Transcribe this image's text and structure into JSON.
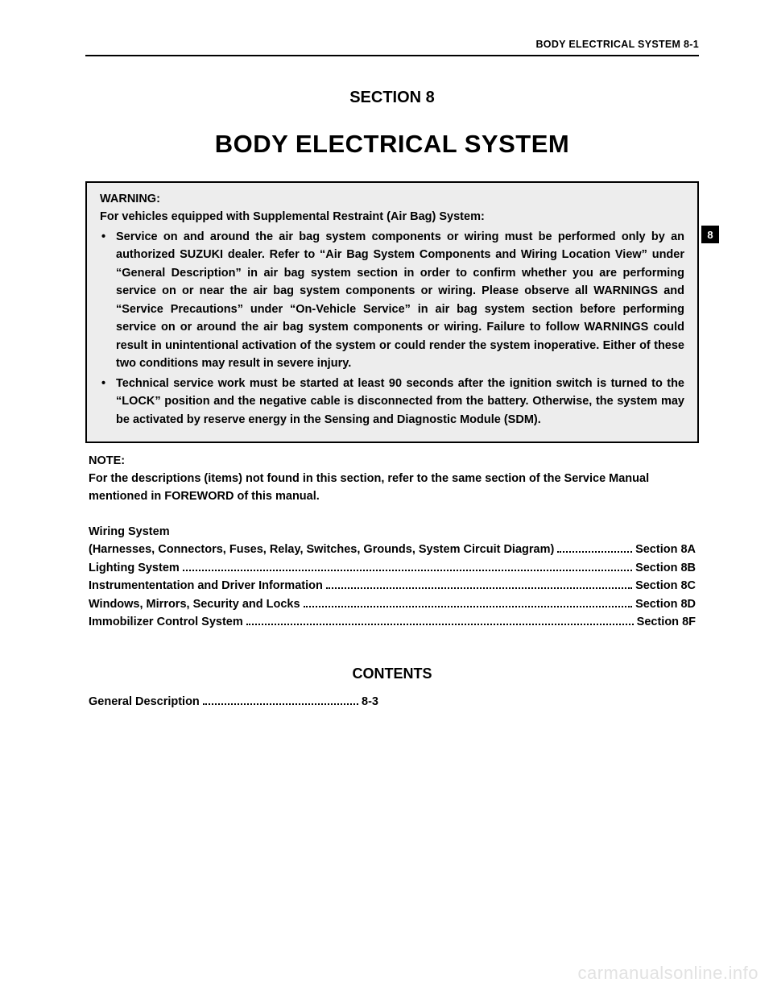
{
  "colors": {
    "text": "#000000",
    "background": "#ffffff",
    "warning_bg": "#ededed",
    "tab_bg": "#000000",
    "tab_fg": "#ffffff",
    "watermark": "#e2e2e2",
    "rule": "#000000"
  },
  "typography": {
    "family": "Arial",
    "running_head_pt": 12.5,
    "section_label_pt": 20,
    "main_title_pt": 31,
    "body_bold_pt": 14.5,
    "contents_title_pt": 18,
    "watermark_pt": 22
  },
  "running_head": "BODY ELECTRICAL SYSTEM 8-1",
  "section_label": "SECTION 8",
  "main_title": "BODY ELECTRICAL SYSTEM",
  "side_tab": "8",
  "warning": {
    "title": "WARNING:",
    "subtitle": "For vehicles equipped with Supplemental Restraint (Air Bag) System:",
    "bullets": [
      "Service on and around the air bag system components or wiring must be performed only by an authorized SUZUKI dealer. Refer to “Air Bag System Components and Wiring Location View” under “General Description” in air bag system section in order to confirm whether you are performing service on or near the air bag system components or wiring. Please observe all WARNINGS and “Service Precautions” under “On-Vehicle Service” in air bag system section before performing service on or around the air bag system components or wiring. Failure to follow WARNINGS could result in unintentional activation of the system or could render the system inoperative. Either of these two conditions may result in severe injury.",
      "Technical service work must be started at least 90 seconds after the ignition switch is turned to the “LOCK” position and the negative cable is disconnected from the battery. Otherwise, the system may be activated by reserve energy in the Sensing and Diagnostic Module (SDM)."
    ]
  },
  "note": {
    "title": "NOTE:",
    "text": "For the descriptions (items) not found in this section, refer to the same section of the Service Manual mentioned in FOREWORD of this manual."
  },
  "section_toc": {
    "heading": "Wiring System",
    "rows": [
      {
        "label": "(Harnesses, Connectors, Fuses, Relay, Switches, Grounds, System Circuit Diagram)",
        "target": "Section 8A"
      },
      {
        "label": "Lighting System",
        "target": "Section 8B"
      },
      {
        "label": "Instrumententation and Driver Information",
        "target": "Section 8C"
      },
      {
        "label": "Windows, Mirrors, Security and Locks",
        "target": "Section 8D"
      },
      {
        "label": "Immobilizer Control System",
        "target": "Section 8F"
      }
    ]
  },
  "contents": {
    "title": "CONTENTS",
    "rows": [
      {
        "label": "General Description",
        "target": "8-3"
      }
    ]
  },
  "watermark": "carmanualsonline.info"
}
